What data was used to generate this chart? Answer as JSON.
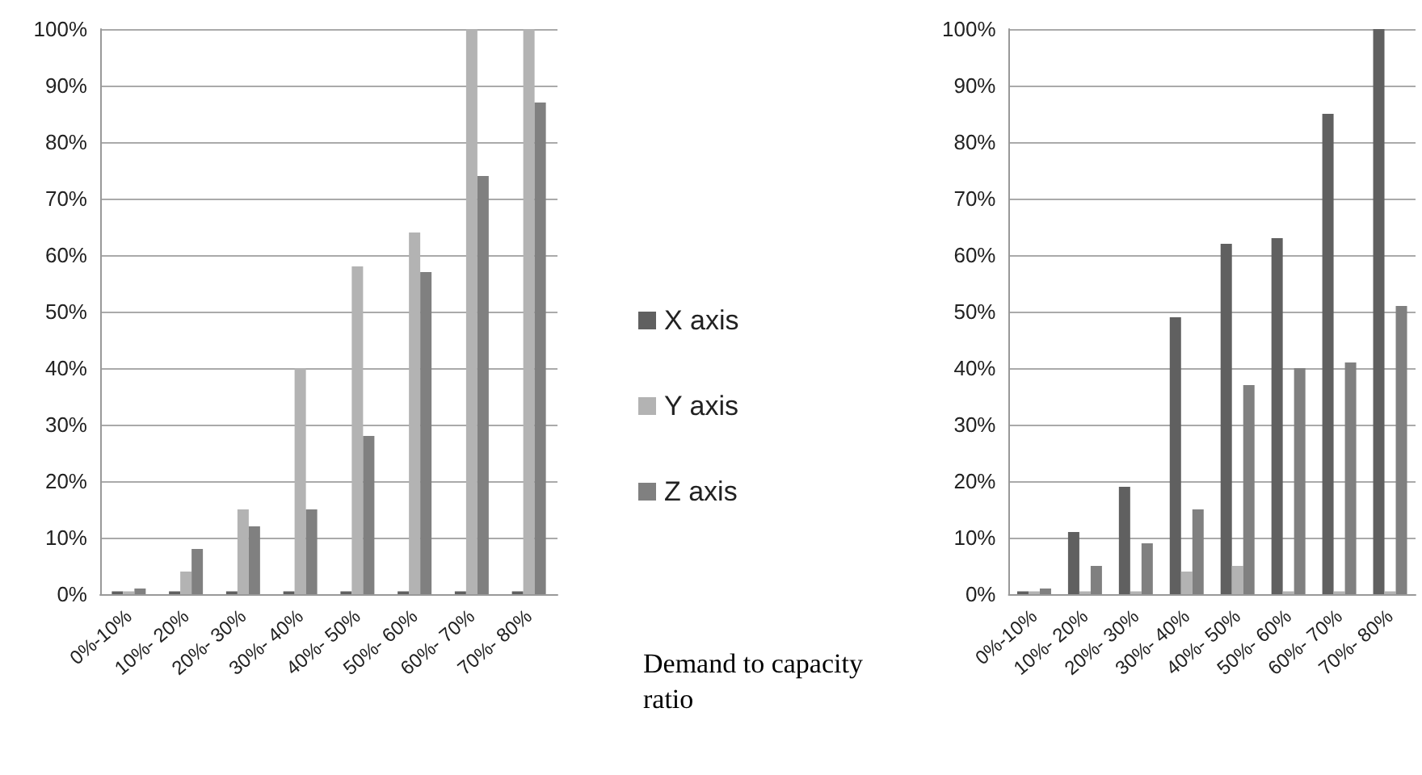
{
  "chart_data": [
    {
      "type": "bar",
      "xlabel": "Demand to capacity ratio",
      "categories": [
        "0%-10%",
        "10%- 20%",
        "20%- 30%",
        "30%- 40%",
        "40%- 50%",
        "50%- 60%",
        "60%- 70%",
        "70%- 80%"
      ],
      "series": [
        {
          "name": "X axis",
          "color": "#606060",
          "values": [
            0.5,
            0.5,
            0.5,
            0.5,
            0.5,
            0.5,
            0.5,
            0.5
          ]
        },
        {
          "name": "Y axis",
          "color": "#b3b3b3",
          "values": [
            0.5,
            4,
            15,
            40,
            58,
            64,
            100,
            100
          ]
        },
        {
          "name": "Z axis",
          "color": "#808080",
          "values": [
            1,
            8,
            12,
            15,
            28,
            57,
            74,
            87
          ]
        }
      ],
      "ylim": [
        0,
        100
      ],
      "yticks": [
        {
          "value": 0,
          "label": "0%"
        },
        {
          "value": 10,
          "label": "10%"
        },
        {
          "value": 20,
          "label": "20%"
        },
        {
          "value": 30,
          "label": "30%"
        },
        {
          "value": 40,
          "label": "40%"
        },
        {
          "value": 50,
          "label": "50%"
        },
        {
          "value": 60,
          "label": "60%"
        },
        {
          "value": 70,
          "label": "70%"
        },
        {
          "value": 80,
          "label": "80%"
        },
        {
          "value": 90,
          "label": "90%"
        },
        {
          "value": 100,
          "label": "100%"
        }
      ],
      "grid": "y",
      "legend": "right"
    },
    {
      "type": "bar",
      "categories": [
        "0%-10%",
        "10%- 20%",
        "20%- 30%",
        "30%- 40%",
        "40%- 50%",
        "50%- 60%",
        "60%- 70%",
        "70%- 80%"
      ],
      "series": [
        {
          "color": "#606060",
          "values": [
            0.5,
            11,
            19,
            49,
            62,
            63,
            85,
            100
          ]
        },
        {
          "color": "#b3b3b3",
          "values": [
            0.5,
            0.5,
            0.5,
            4,
            5,
            0.5,
            0.5,
            0.5
          ]
        },
        {
          "color": "#808080",
          "values": [
            1,
            5,
            9,
            15,
            37,
            40,
            41,
            51
          ]
        }
      ],
      "ylim": [
        0,
        100
      ],
      "yticks": [
        {
          "value": 0,
          "label": "0%"
        },
        {
          "value": 10,
          "label": "10%"
        },
        {
          "value": 20,
          "label": "20%"
        },
        {
          "value": 30,
          "label": "30%"
        },
        {
          "value": 40,
          "label": "40%"
        },
        {
          "value": 50,
          "label": "50%"
        },
        {
          "value": 60,
          "label": "60%"
        },
        {
          "value": 70,
          "label": "70%"
        },
        {
          "value": 80,
          "label": "80%"
        },
        {
          "value": 90,
          "label": "90%"
        },
        {
          "value": 100,
          "label": "100%"
        }
      ],
      "grid": "y",
      "legend": false
    }
  ]
}
